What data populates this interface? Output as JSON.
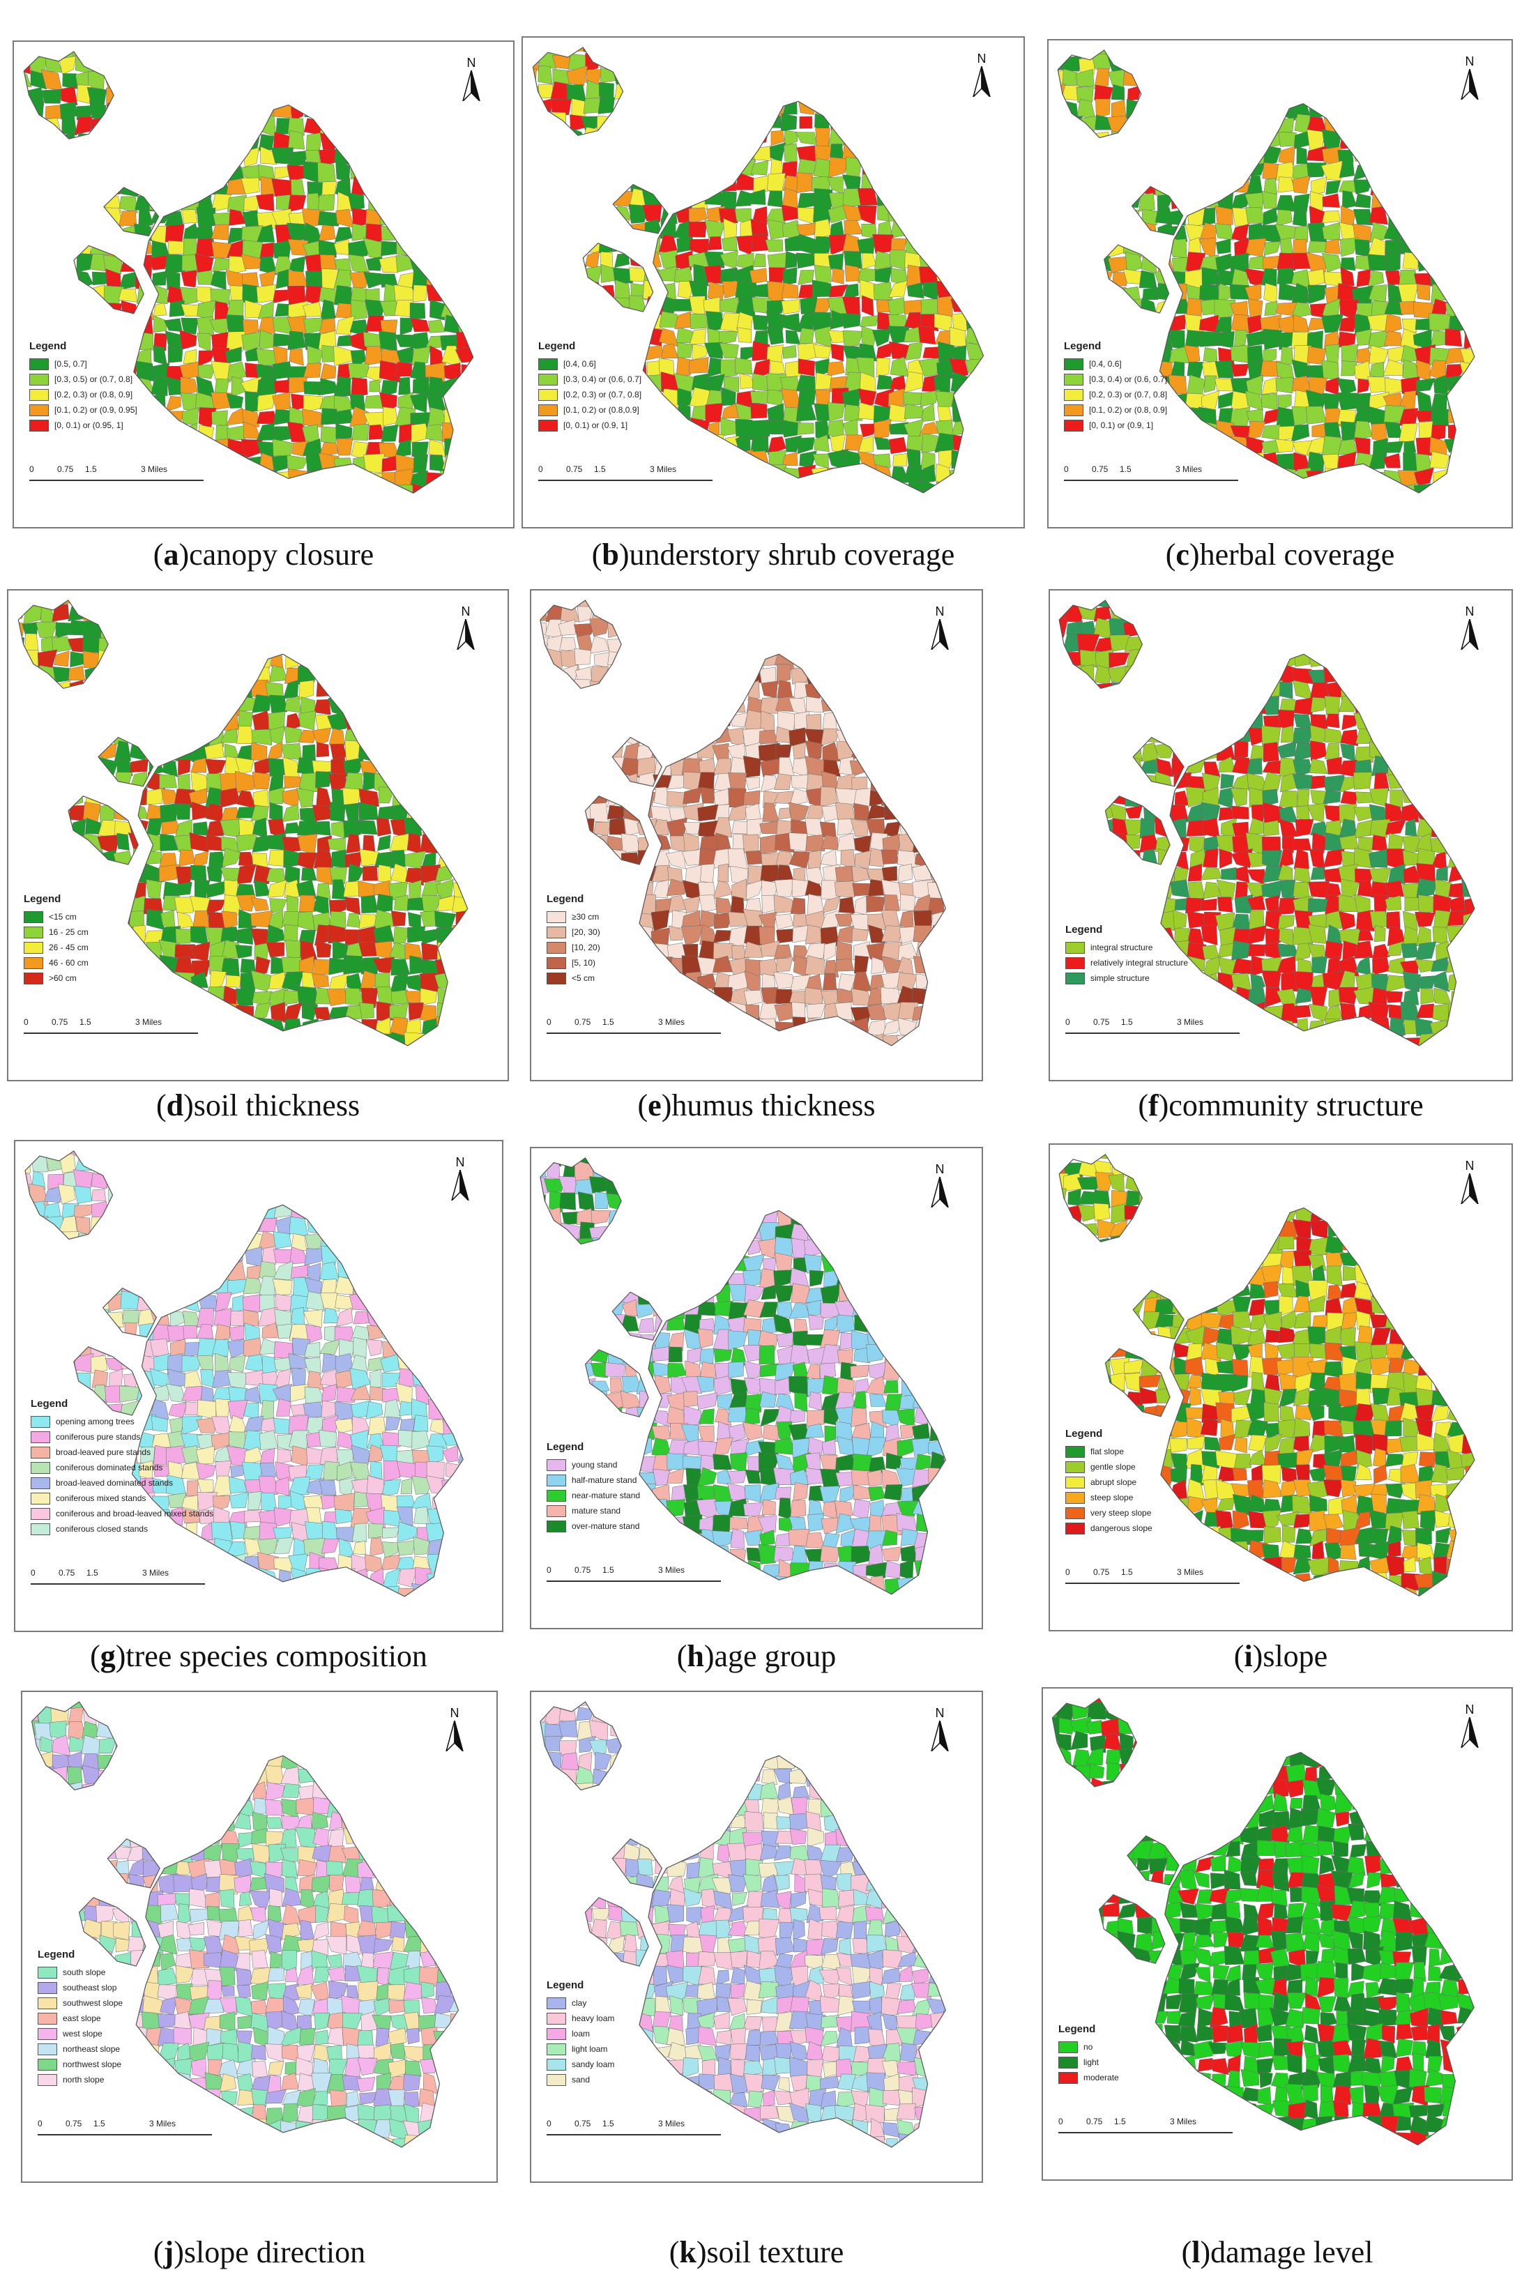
{
  "north_label": "N",
  "legend_title": "Legend",
  "scale_labels": [
    "0",
    "0.75",
    "1.5",
    "3 Miles"
  ],
  "panels": [
    {
      "letter": "a",
      "title": "canopy closure",
      "legend": [
        {
          "label": "[0.5, 0.7]",
          "color": "#1f9a2e"
        },
        {
          "label": "[0.3, 0.5) or (0.7, 0.8]",
          "color": "#8cd43a"
        },
        {
          "label": "[0.2, 0.3) or (0.8, 0.9]",
          "color": "#f2ec3a"
        },
        {
          "label": "[0.1, 0.2) or (0.9, 0.95]",
          "color": "#f39a1e"
        },
        {
          "label": "[0, 0.1) or (0.95, 1]",
          "color": "#ec1c1c"
        }
      ]
    },
    {
      "letter": "b",
      "title": "understory shrub coverage",
      "legend": [
        {
          "label": "[0.4, 0.6]",
          "color": "#1f9a2e"
        },
        {
          "label": "[0.3, 0.4) or (0.6, 0.7]",
          "color": "#8cd43a"
        },
        {
          "label": "[0.2, 0.3) or (0.7, 0.8]",
          "color": "#f2ec3a"
        },
        {
          "label": "[0.1, 0.2) or (0.8,0.9]",
          "color": "#f39a1e"
        },
        {
          "label": "[0, 0.1) or (0.9, 1]",
          "color": "#ec1c1c"
        }
      ]
    },
    {
      "letter": "c",
      "title": "herbal coverage",
      "legend": [
        {
          "label": "[0.4, 0.6]",
          "color": "#1f9a2e"
        },
        {
          "label": "[0.3, 0.4) or (0.6, 0.7]",
          "color": "#8cd43a"
        },
        {
          "label": "[0.2, 0.3) or (0.7, 0.8]",
          "color": "#f2ec3a"
        },
        {
          "label": "[0.1, 0.2) or (0.8, 0.9]",
          "color": "#f39a1e"
        },
        {
          "label": "[0, 0.1) or (0.9, 1]",
          "color": "#ec1c1c"
        }
      ]
    },
    {
      "letter": "d",
      "title": "soil thickness",
      "legend": [
        {
          "label": "<15 cm",
          "color": "#1f9a2e"
        },
        {
          "label": "16 - 25 cm",
          "color": "#8cd43a"
        },
        {
          "label": "26 - 45 cm",
          "color": "#f2ec3a"
        },
        {
          "label": "46 - 60 cm",
          "color": "#f39a1e"
        },
        {
          "label": ">60 cm",
          "color": "#d42a1a"
        }
      ]
    },
    {
      "letter": "e",
      "title": "humus thickness",
      "legend": [
        {
          "label": "≥30 cm",
          "color": "#f6e2d8"
        },
        {
          "label": "[20, 30)",
          "color": "#e8b9a2"
        },
        {
          "label": "[10, 20)",
          "color": "#d4896c"
        },
        {
          "label": "[5, 10)",
          "color": "#c0654a"
        },
        {
          "label": "<5 cm",
          "color": "#9c3a24"
        }
      ]
    },
    {
      "letter": "f",
      "title": "community structure",
      "legend": [
        {
          "label": "integral structure",
          "color": "#9ccd2a"
        },
        {
          "label": "relatively integral structure",
          "color": "#ec1c1c"
        },
        {
          "label": "simple structure",
          "color": "#2e9a5c"
        }
      ]
    },
    {
      "letter": "g",
      "title": "tree species composition",
      "legend": [
        {
          "label": "opening among trees",
          "color": "#8ee8f0"
        },
        {
          "label": "coniferous pure stands",
          "color": "#f4a8e4"
        },
        {
          "label": "broad-leaved pure stands",
          "color": "#f4b4a4"
        },
        {
          "label": "coniferous dominated stands",
          "color": "#b8e4b4"
        },
        {
          "label": "broad-leaved dominated stands",
          "color": "#a8b8ec"
        },
        {
          "label": "coniferous mixed stands",
          "color": "#f8f0b4"
        },
        {
          "label": "coniferous and broad-leaved mixed stands",
          "color": "#f8c8e0"
        },
        {
          "label": "coniferous closed stands",
          "color": "#c4ecd8"
        }
      ]
    },
    {
      "letter": "h",
      "title": "age group",
      "legend": [
        {
          "label": "young stand",
          "color": "#e4b8ec"
        },
        {
          "label": "half-mature stand",
          "color": "#8ed4f0"
        },
        {
          "label": "near-mature stand",
          "color": "#2ecc2e"
        },
        {
          "label": "mature stand",
          "color": "#f4b4ac"
        },
        {
          "label": "over-mature stand",
          "color": "#1a8a2a"
        }
      ]
    },
    {
      "letter": "i",
      "title": "slope",
      "legend": [
        {
          "label": "flat slope",
          "color": "#1f9a2e"
        },
        {
          "label": "gentle slope",
          "color": "#9ccd2a"
        },
        {
          "label": "abrupt slope",
          "color": "#f2ec3a"
        },
        {
          "label": "steep slope",
          "color": "#f8a81e"
        },
        {
          "label": "very steep slope",
          "color": "#f0641a"
        },
        {
          "label": "dangerous slope",
          "color": "#e01a1a"
        }
      ]
    },
    {
      "letter": "j",
      "title": "slope direction",
      "legend": [
        {
          "label": "south slope",
          "color": "#8ee8c0"
        },
        {
          "label": "southeast slop",
          "color": "#b4a8ec"
        },
        {
          "label": "southwest slope",
          "color": "#f8e4a8"
        },
        {
          "label": "east slope",
          "color": "#f8b4a8"
        },
        {
          "label": "west slope",
          "color": "#f4b4ec"
        },
        {
          "label": "northeast slope",
          "color": "#c4e4f4"
        },
        {
          "label": "northwest slope",
          "color": "#7ed88a"
        },
        {
          "label": "north slope",
          "color": "#f8d8e8"
        }
      ]
    },
    {
      "letter": "k",
      "title": "soil texture",
      "legend": [
        {
          "label": "clay",
          "color": "#a8b4ec"
        },
        {
          "label": "heavy loam",
          "color": "#f8c8d8"
        },
        {
          "label": "loam",
          "color": "#f4a8e4"
        },
        {
          "label": "light loam",
          "color": "#a8ecb8"
        },
        {
          "label": "sandy loam",
          "color": "#a8e4ec"
        },
        {
          "label": "sand",
          "color": "#f4ecc8"
        }
      ]
    },
    {
      "letter": "l",
      "title": "damage level",
      "legend": [
        {
          "label": "no",
          "color": "#22d022"
        },
        {
          "label": "light",
          "color": "#1a8a2a"
        },
        {
          "label": "moderate",
          "color": "#ec1c1c"
        }
      ]
    }
  ]
}
